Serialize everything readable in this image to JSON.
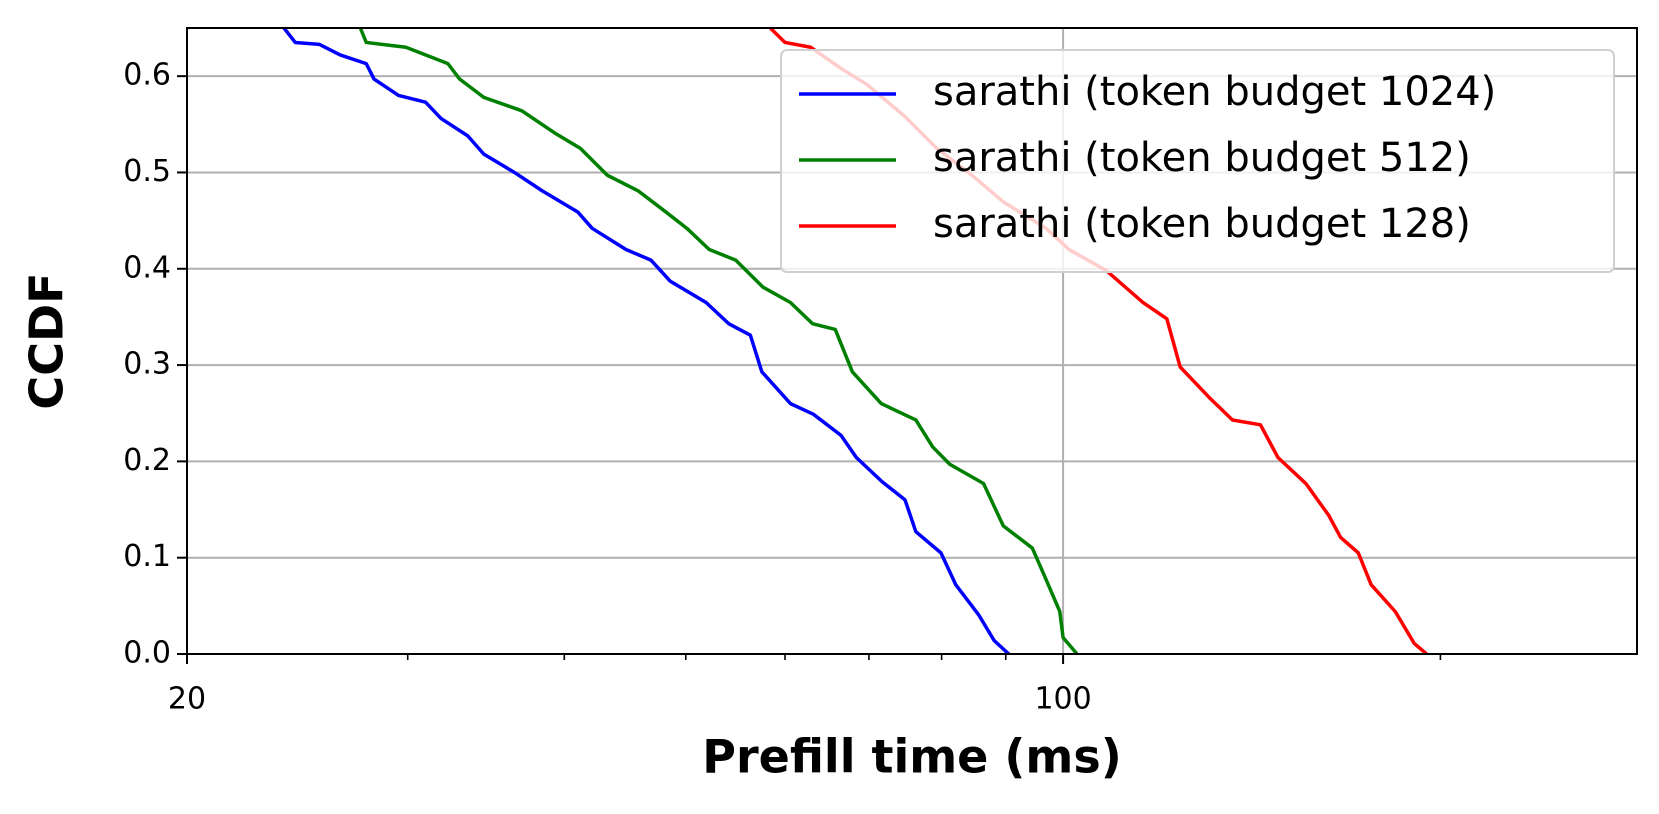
{
  "chart_data": {
    "type": "line",
    "xlabel": "Prefill time (ms)",
    "ylabel": "CCDF",
    "xscale": "log",
    "xlim": [
      20,
      287
    ],
    "xticks": [
      20,
      100
    ],
    "xminorticks": [
      30,
      40,
      50,
      60,
      70,
      80,
      90,
      200
    ],
    "ylim": [
      0,
      0.65
    ],
    "yticks": [
      {
        "value": 0,
        "label": "0.0"
      },
      0.1,
      0.2,
      0.3,
      0.4,
      0.5,
      0.6
    ],
    "grid": true,
    "legend": "upper right",
    "series": [
      {
        "name": "sarathi (token budget 1024)",
        "color": "#0000ff",
        "x": [
          23.9,
          24.4,
          25.5,
          26.5,
          27.8,
          28.2,
          29.5,
          31.0,
          31.9,
          33.5,
          34.5,
          36.5,
          38.4,
          41.0,
          42.1,
          44.8,
          46.9,
          48.6,
          51.9,
          54.1,
          56.3,
          57.5,
          60.6,
          63.2,
          66.5,
          68.4,
          71.7,
          74.8,
          76.3,
          79.9,
          82.1,
          85.6,
          88.1,
          90.5
        ],
        "values": [
          0.65,
          0.635,
          0.633,
          0.622,
          0.613,
          0.597,
          0.58,
          0.573,
          0.556,
          0.538,
          0.519,
          0.5,
          0.481,
          0.459,
          0.442,
          0.42,
          0.409,
          0.387,
          0.365,
          0.343,
          0.331,
          0.293,
          0.26,
          0.249,
          0.227,
          0.204,
          0.179,
          0.16,
          0.127,
          0.105,
          0.072,
          0.041,
          0.014,
          0
        ]
      },
      {
        "name": "sarathi (token budget 512)",
        "color": "#008000",
        "x": [
          27.5,
          27.8,
          29.9,
          32.3,
          33.0,
          34.5,
          37.0,
          39.3,
          41.2,
          43.3,
          45.8,
          48.2,
          50.1,
          52.2,
          54.8,
          57.6,
          60.6,
          63.1,
          65.8,
          67.9,
          71.6,
          76.3,
          78.7,
          81.2,
          86.4,
          89.6,
          94.5,
          96.5,
          99.4,
          100,
          102.6
        ],
        "values": [
          0.65,
          0.635,
          0.63,
          0.613,
          0.597,
          0.578,
          0.564,
          0.541,
          0.525,
          0.497,
          0.481,
          0.459,
          0.442,
          0.42,
          0.409,
          0.381,
          0.365,
          0.343,
          0.337,
          0.293,
          0.26,
          0.243,
          0.215,
          0.197,
          0.177,
          0.133,
          0.11,
          0.083,
          0.044,
          0.017,
          0
        ]
      },
      {
        "name": "sarathi (token budget 128)",
        "color": "#ff0000",
        "x": [
          58.4,
          60.0,
          62.9,
          66.5,
          69.8,
          74.8,
          79.3,
          84.6,
          89.5,
          96.9,
          101.1,
          108.3,
          115.8,
          121.0,
          124.0,
          131.1,
          136.5,
          143.7,
          148.4,
          156.2,
          162.9,
          166.5,
          172.0,
          176.1,
          184.1,
          190.6,
          195.0
        ],
        "values": [
          0.65,
          0.635,
          0.63,
          0.608,
          0.591,
          0.558,
          0.525,
          0.497,
          0.47,
          0.442,
          0.42,
          0.398,
          0.365,
          0.348,
          0.298,
          0.265,
          0.243,
          0.238,
          0.204,
          0.177,
          0.144,
          0.121,
          0.105,
          0.072,
          0.044,
          0.011,
          0
        ]
      }
    ]
  }
}
